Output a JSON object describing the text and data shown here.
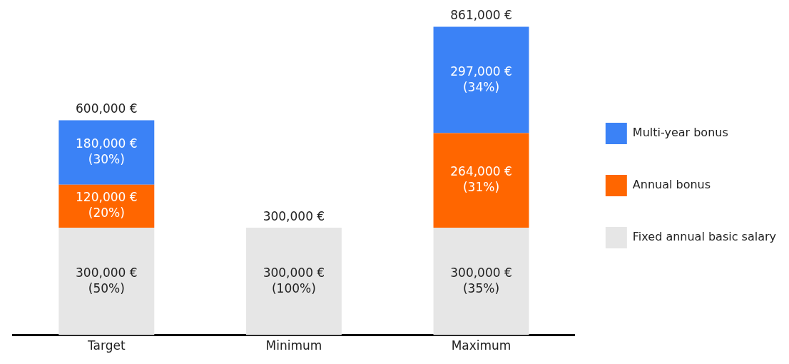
{
  "chart_data": {
    "type": "bar",
    "stacked": true,
    "categories": [
      "Target",
      "Minimum",
      "Maximum"
    ],
    "series": [
      {
        "name": "Fixed annual basic salary",
        "color": "#e6e6e6",
        "values": [
          300000,
          300000,
          300000
        ],
        "value_labels": [
          "300,000 €\n(50%)",
          "300,000 €\n(100%)",
          "300,000 €\n(35%)"
        ]
      },
      {
        "name": "Annual bonus",
        "color": "#ff6600",
        "values": [
          120000,
          null,
          264000
        ],
        "value_labels": [
          "120,000 €\n(20%)",
          null,
          "264,000 €\n(31%)"
        ]
      },
      {
        "name": "Multi-year bonus",
        "color": "#3b82f6",
        "values": [
          180000,
          null,
          297000
        ],
        "value_labels": [
          "180,000 €\n(30%)",
          null,
          "297,000 €\n(34%)"
        ]
      }
    ],
    "totals": [
      "600,000 €",
      "300,000 €",
      "861,000 €"
    ],
    "legend": "right",
    "grid": false
  }
}
